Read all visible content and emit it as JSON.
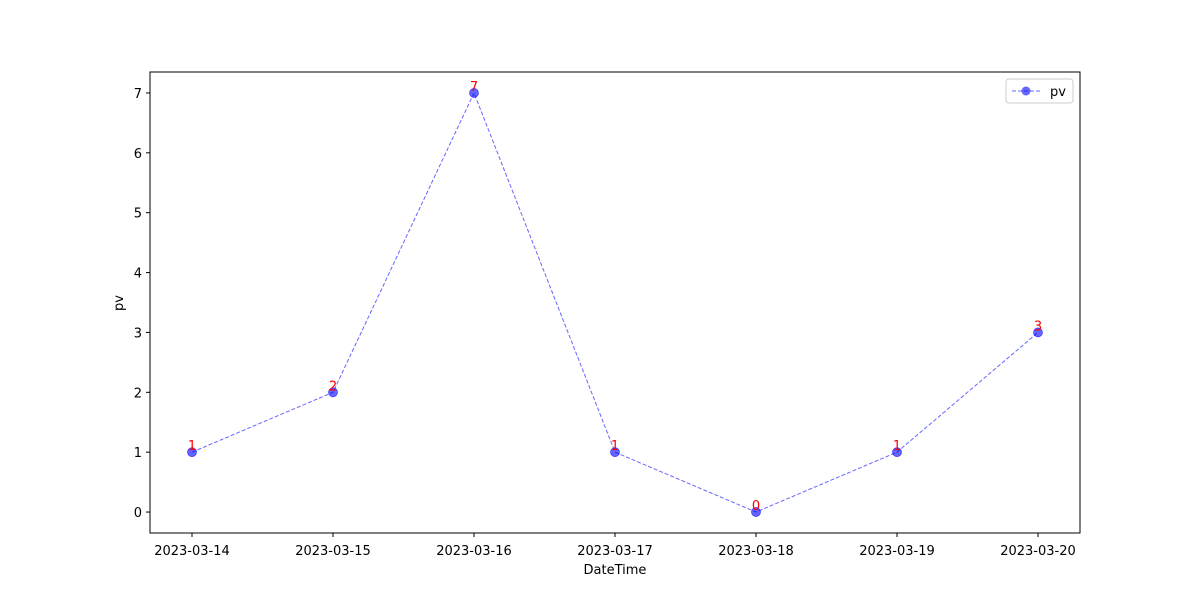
{
  "chart_data": {
    "type": "line",
    "title": "",
    "xlabel": "DateTime",
    "ylabel": "pv",
    "categories": [
      "2023-03-14",
      "2023-03-15",
      "2023-03-16",
      "2023-03-17",
      "2023-03-18",
      "2023-03-19",
      "2023-03-20"
    ],
    "yticks": [
      0,
      1,
      2,
      3,
      4,
      5,
      6,
      7
    ],
    "ylim": [
      -0.35,
      7.35
    ],
    "series": [
      {
        "name": "pv",
        "values": [
          1,
          2,
          7,
          1,
          0,
          1,
          3
        ],
        "color": "#0000ff",
        "line_style": "dashed",
        "marker": "circle"
      }
    ],
    "data_labels": [
      "1",
      "2",
      "7",
      "1",
      "0",
      "1",
      "3"
    ],
    "data_label_color": "#ff0000",
    "legend_position": "top-right",
    "grid": false
  }
}
